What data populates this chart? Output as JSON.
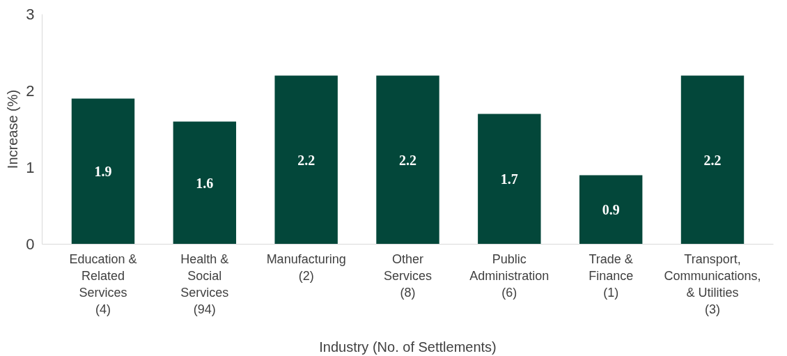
{
  "chart_data": {
    "type": "bar",
    "xlabel": "Industry (No. of Settlements)",
    "ylabel": "Increase (%)",
    "categories": [
      "Education &\nRelated\nServices\n(4)",
      "Health &\nSocial\nServices\n(94)",
      "Manufacturing\n(2)",
      "Other\nServices\n(8)",
      "Public\nAdministration\n(6)",
      "Trade &\nFinance\n(1)",
      "Transport,\nCommunications,\n& Utilities\n(3)"
    ],
    "values": [
      1.9,
      1.6,
      2.2,
      2.2,
      1.7,
      0.9,
      2.2
    ],
    "color": "#03473a",
    "ylim": [
      0,
      3
    ],
    "yticks": [
      0,
      1,
      2,
      3
    ],
    "grid": false,
    "data_labels": true
  }
}
